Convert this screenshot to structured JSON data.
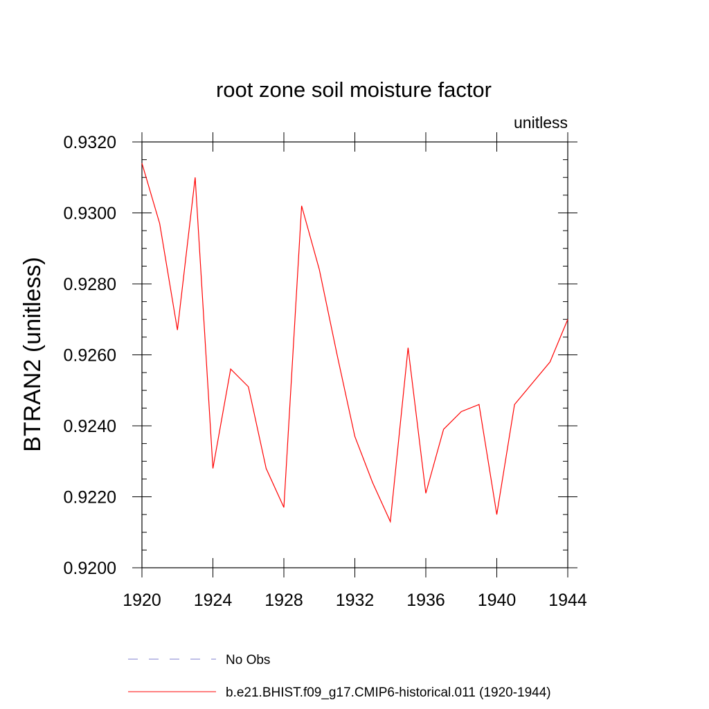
{
  "chart_data": {
    "type": "line",
    "title": "root zone soil moisture factor",
    "units_label": "unitless",
    "ylabel": "BTRAN2  (unitless)",
    "xlabel": "",
    "xlim": [
      1920,
      1944
    ],
    "ylim": [
      0.92,
      0.932
    ],
    "x_ticks": [
      1920,
      1924,
      1928,
      1932,
      1936,
      1940,
      1944
    ],
    "x_tick_labels": [
      "1920",
      "1924",
      "1928",
      "1932",
      "1936",
      "1940",
      "1944"
    ],
    "y_ticks": [
      0.92,
      0.922,
      0.924,
      0.926,
      0.928,
      0.93,
      0.932
    ],
    "y_tick_labels": [
      "0.9200",
      "0.9220",
      "0.9240",
      "0.9260",
      "0.9280",
      "0.9300",
      "0.9320"
    ],
    "grid": false,
    "legend_position": "bottom",
    "series": [
      {
        "name": "b.e21.BHIST.f09_g17.CMIP6-historical.011 (1920-1944)",
        "color": "#ff0000",
        "style": "solid",
        "x": [
          1920,
          1921,
          1922,
          1923,
          1924,
          1925,
          1926,
          1927,
          1928,
          1929,
          1930,
          1931,
          1932,
          1933,
          1934,
          1935,
          1936,
          1937,
          1938,
          1939,
          1940,
          1941,
          1942,
          1943,
          1944
        ],
        "values": [
          0.9314,
          0.9297,
          0.9267,
          0.931,
          0.9228,
          0.9256,
          0.9251,
          0.9228,
          0.9217,
          0.9302,
          0.9284,
          0.926,
          0.9237,
          0.9224,
          0.9213,
          0.9262,
          0.9221,
          0.9239,
          0.9244,
          0.9246,
          0.9215,
          0.9246,
          0.9252,
          0.9258,
          0.927
        ]
      }
    ],
    "legend": [
      {
        "label": "No Obs",
        "color": "#7f7fcf",
        "style": "dashed"
      },
      {
        "label": "b.e21.BHIST.f09_g17.CMIP6-historical.011 (1920-1944)",
        "color": "#ff0000",
        "style": "solid"
      }
    ]
  }
}
